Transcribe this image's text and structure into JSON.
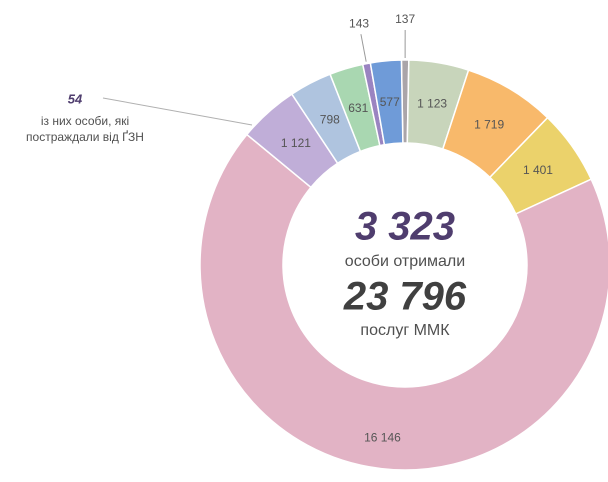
{
  "chart_data": {
    "type": "donut",
    "values": [
      137,
      1123,
      1719,
      1401,
      16146,
      1121,
      798,
      631,
      143,
      577
    ],
    "value_labels": [
      "137",
      "1 123",
      "1 719",
      "1 401",
      "16 146",
      "1 121",
      "798",
      "631",
      "143",
      "577"
    ],
    "colors": [
      "#aaa5a9",
      "#c8d5bb",
      "#f8b96b",
      "#ebd26b",
      "#e2b3c5",
      "#c0aed8",
      "#afc4df",
      "#a9d7b1",
      "#9a84c1",
      "#6f9bd8"
    ],
    "center": {
      "count": "3 323",
      "count_caption": "особи отримали",
      "total": "23 796",
      "total_caption": "послуг ММК"
    },
    "annotation": {
      "value": 54,
      "text": [
        "із них особи, які",
        "постраждали від ҐЗН"
      ]
    }
  }
}
